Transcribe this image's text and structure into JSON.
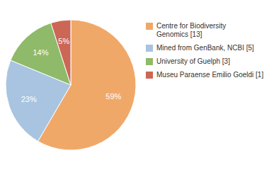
{
  "chart_data": {
    "type": "pie",
    "categories": [
      "Centre for Biodiversity\nGenomics [13]",
      "Mined from GenBank, NCBI [5]",
      "University of Guelph [3]",
      "Museu Paraense Emilio Goeldi [1]"
    ],
    "values": [
      59,
      23,
      14,
      5
    ],
    "value_labels": [
      "59%",
      "23%",
      "14%",
      "5%"
    ],
    "colors": [
      "#f0a868",
      "#a8c4e0",
      "#8fba6a",
      "#cc6655"
    ],
    "data_labels": true,
    "legend": "right"
  }
}
